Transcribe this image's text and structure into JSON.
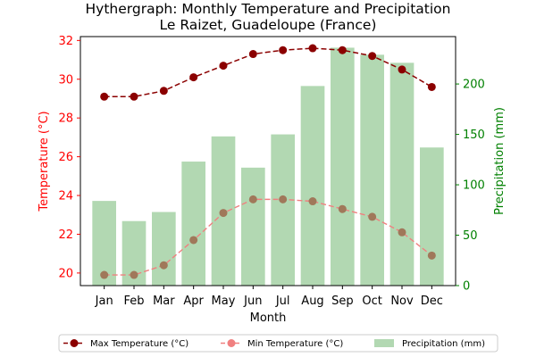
{
  "chart_data": {
    "type": "bar",
    "title": "Hythergraph: Monthly Temperature and Precipitation",
    "subtitle": "Le Raizet, Guadeloupe (France)",
    "xlabel": "Month",
    "ylabel_left": "Temperature (°C)",
    "ylabel_right": "Precipitation (mm)",
    "categories": [
      "Jan",
      "Feb",
      "Mar",
      "Apr",
      "May",
      "Jun",
      "Jul",
      "Aug",
      "Sep",
      "Oct",
      "Nov",
      "Dec"
    ],
    "ylim_left": [
      19.35,
      32.2
    ],
    "yticks_left": [
      "20",
      "22",
      "24",
      "26",
      "28",
      "30",
      "32"
    ],
    "ylim_right": [
      0,
      247
    ],
    "yticks_right": [
      "0",
      "50",
      "100",
      "150",
      "200"
    ],
    "grid": false,
    "legend_position": "bottom-center",
    "series": [
      {
        "name": "Max Temperature (°C)",
        "type": "line",
        "axis": "left",
        "values": [
          29.1,
          29.1,
          29.4,
          30.1,
          30.7,
          31.3,
          31.5,
          31.6,
          31.5,
          31.2,
          30.5,
          29.6
        ],
        "color": "#8b0000",
        "line_style": "dashed",
        "marker": "circle"
      },
      {
        "name": "Min Temperature (°C)",
        "type": "line",
        "axis": "left",
        "values": [
          19.9,
          19.9,
          20.4,
          21.7,
          23.1,
          23.8,
          23.8,
          23.7,
          23.3,
          22.9,
          22.1,
          20.9
        ],
        "color": "#f08080",
        "line_style": "dashed",
        "marker": "circle"
      },
      {
        "name": "Precipitation (mm)",
        "type": "bar",
        "axis": "right",
        "values": [
          84,
          64,
          73,
          123,
          148,
          117,
          150,
          198,
          236,
          229,
          221,
          137
        ],
        "color": "#b2d8b2"
      }
    ],
    "colors": {
      "left_axis": "#ff0000",
      "right_axis": "#008000"
    }
  }
}
